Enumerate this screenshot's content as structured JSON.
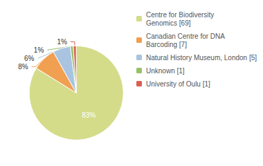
{
  "chart_data": {
    "type": "pie",
    "categories": [
      "Centre for Biodiversity\nGenomics [69]",
      "Canadian Centre for DNA\nBarcoding [7]",
      "Natural History Museum, London [5]",
      "Unknown [1]",
      "University of Oulu [1]"
    ],
    "values": [
      83,
      8,
      6,
      1,
      1
    ],
    "value_labels": [
      "83%",
      "8%",
      "6%",
      "1%",
      "1%"
    ],
    "colors": [
      "#d4dc8a",
      "#f0a050",
      "#a8c4e0",
      "#98c068",
      "#d96050"
    ],
    "data_labels": true,
    "legend": "right"
  }
}
